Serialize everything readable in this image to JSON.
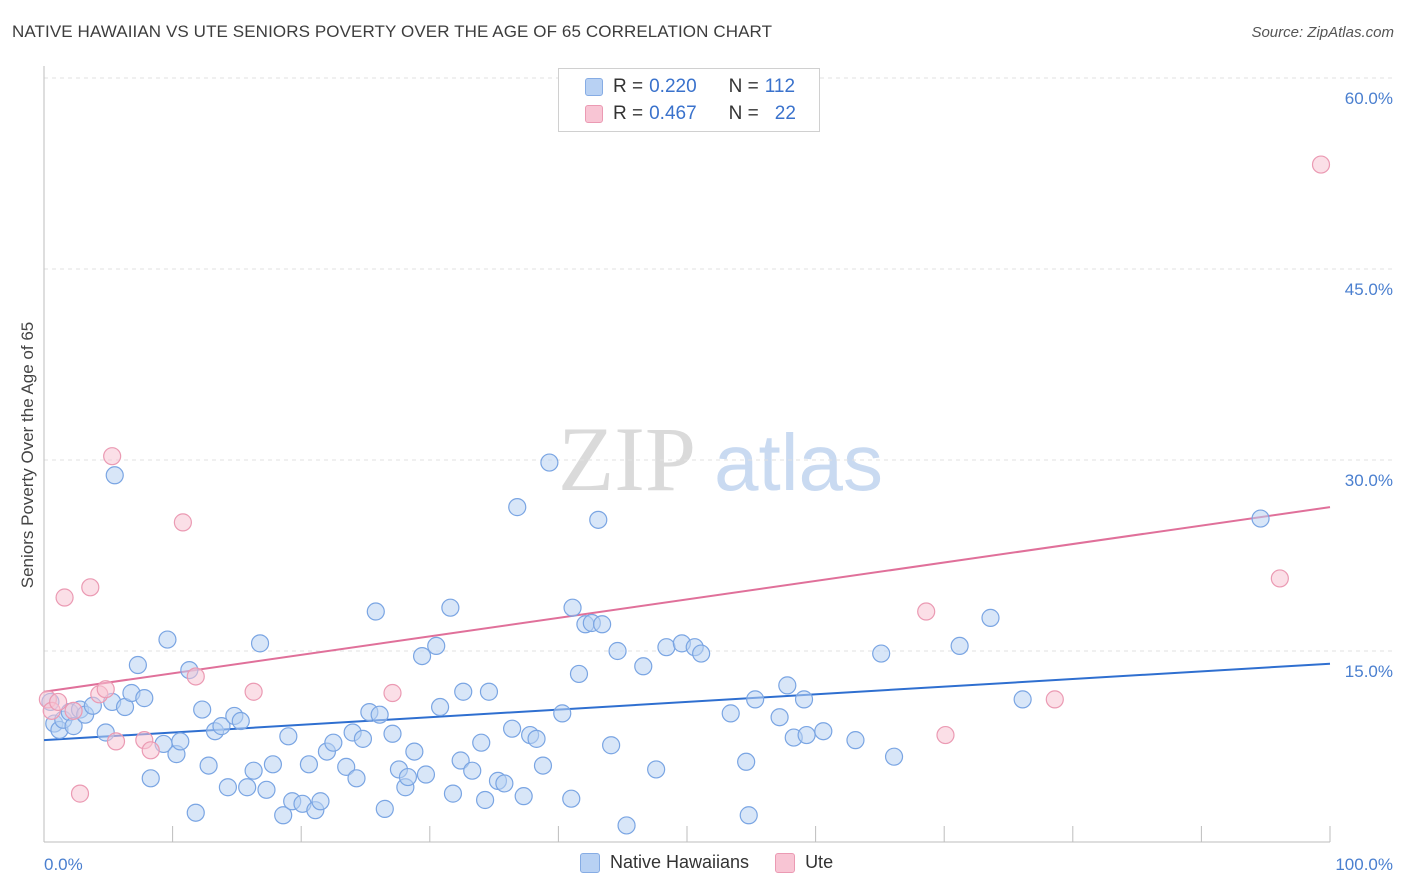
{
  "header": {
    "title": "NATIVE HAWAIIAN VS UTE SENIORS POVERTY OVER THE AGE OF 65 CORRELATION CHART",
    "source": "Source: ZipAtlas.com"
  },
  "legend": {
    "rows": [
      {
        "r_label": "R = ",
        "r_value": "0.220",
        "n_label": "N = ",
        "n_value": "112"
      },
      {
        "r_label": "R = ",
        "r_value": "0.467",
        "n_label": "N = ",
        "n_value": "22"
      }
    ]
  },
  "bottom_legend": [
    "Native Hawaiians",
    "Ute"
  ],
  "watermark": {
    "zip": "ZIP",
    "atlas": "atlas"
  },
  "colors": {
    "blue_fill": "#b8d1f3",
    "blue_stroke": "#7aa5e3",
    "blue_line": "#2f6fd0",
    "pink_fill": "#f8c5d4",
    "pink_stroke": "#eb9ab3",
    "pink_line": "#e0709a",
    "tick_color": "#4a7fcf",
    "grid": "#e2e2e2"
  },
  "chart_data": {
    "type": "scatter",
    "title": "NATIVE HAWAIIAN VS UTE SENIORS POVERTY OVER THE AGE OF 65 CORRELATION CHART",
    "xlabel": "",
    "ylabel": "Seniors Poverty Over the Age of 65",
    "xlim": [
      0,
      100
    ],
    "ylim": [
      0,
      60
    ],
    "x_tick_labels": [
      {
        "value": 0,
        "label": "0.0%"
      },
      {
        "value": 100,
        "label": "100.0%"
      }
    ],
    "y_tick_labels": [
      {
        "value": 15,
        "label": "15.0%"
      },
      {
        "value": 30,
        "label": "30.0%"
      },
      {
        "value": 45,
        "label": "45.0%"
      },
      {
        "value": 60,
        "label": "60.0%"
      }
    ],
    "series": [
      {
        "name": "Native Hawaiians",
        "r": 0.22,
        "n": 112,
        "trend": {
          "x": [
            0,
            100
          ],
          "y": [
            8.0,
            14.0
          ]
        },
        "points": [
          [
            0.5,
            11.0
          ],
          [
            0.8,
            9.3
          ],
          [
            1.2,
            8.8
          ],
          [
            1.5,
            9.6
          ],
          [
            2.0,
            10.2
          ],
          [
            2.3,
            9.1
          ],
          [
            2.8,
            10.4
          ],
          [
            3.2,
            10.0
          ],
          [
            3.8,
            10.7
          ],
          [
            4.8,
            8.6
          ],
          [
            5.3,
            11.0
          ],
          [
            5.5,
            28.8
          ],
          [
            6.3,
            10.6
          ],
          [
            6.8,
            11.7
          ],
          [
            7.3,
            13.9
          ],
          [
            7.8,
            11.3
          ],
          [
            8.3,
            5.0
          ],
          [
            9.3,
            7.7
          ],
          [
            9.6,
            15.9
          ],
          [
            10.3,
            6.9
          ],
          [
            10.6,
            7.9
          ],
          [
            11.3,
            13.5
          ],
          [
            11.8,
            2.3
          ],
          [
            12.3,
            10.4
          ],
          [
            12.8,
            6.0
          ],
          [
            13.3,
            8.7
          ],
          [
            13.8,
            9.1
          ],
          [
            14.3,
            4.3
          ],
          [
            14.8,
            9.9
          ],
          [
            15.3,
            9.5
          ],
          [
            15.8,
            4.3
          ],
          [
            16.3,
            5.6
          ],
          [
            16.8,
            15.6
          ],
          [
            17.3,
            4.1
          ],
          [
            17.8,
            6.1
          ],
          [
            18.6,
            2.1
          ],
          [
            19.0,
            8.3
          ],
          [
            19.3,
            3.2
          ],
          [
            20.1,
            3.0
          ],
          [
            20.6,
            6.1
          ],
          [
            21.1,
            2.5
          ],
          [
            21.5,
            3.2
          ],
          [
            22.0,
            7.1
          ],
          [
            22.5,
            7.8
          ],
          [
            23.5,
            5.9
          ],
          [
            24.0,
            8.6
          ],
          [
            24.3,
            5.0
          ],
          [
            24.8,
            8.1
          ],
          [
            25.3,
            10.2
          ],
          [
            25.8,
            18.1
          ],
          [
            26.1,
            10.0
          ],
          [
            26.5,
            2.6
          ],
          [
            27.1,
            8.5
          ],
          [
            27.6,
            5.7
          ],
          [
            28.1,
            4.3
          ],
          [
            28.3,
            5.1
          ],
          [
            28.8,
            7.1
          ],
          [
            29.4,
            14.6
          ],
          [
            29.7,
            5.3
          ],
          [
            30.5,
            15.4
          ],
          [
            30.8,
            10.6
          ],
          [
            31.6,
            18.4
          ],
          [
            31.8,
            3.8
          ],
          [
            32.4,
            6.4
          ],
          [
            32.6,
            11.8
          ],
          [
            33.3,
            5.6
          ],
          [
            34.0,
            7.8
          ],
          [
            34.3,
            3.3
          ],
          [
            34.6,
            11.8
          ],
          [
            35.3,
            4.8
          ],
          [
            35.8,
            4.6
          ],
          [
            36.4,
            8.9
          ],
          [
            36.8,
            26.3
          ],
          [
            37.3,
            3.6
          ],
          [
            37.8,
            8.4
          ],
          [
            38.3,
            8.1
          ],
          [
            38.8,
            6.0
          ],
          [
            39.3,
            29.8
          ],
          [
            40.3,
            10.1
          ],
          [
            41.0,
            3.4
          ],
          [
            41.1,
            18.4
          ],
          [
            41.6,
            13.2
          ],
          [
            42.1,
            17.1
          ],
          [
            42.6,
            17.2
          ],
          [
            43.1,
            25.3
          ],
          [
            43.4,
            17.1
          ],
          [
            44.1,
            7.6
          ],
          [
            44.6,
            15.0
          ],
          [
            45.3,
            1.3
          ],
          [
            46.6,
            13.8
          ],
          [
            47.6,
            5.7
          ],
          [
            48.4,
            15.3
          ],
          [
            49.6,
            15.6
          ],
          [
            50.6,
            15.3
          ],
          [
            51.1,
            14.8
          ],
          [
            53.4,
            10.1
          ],
          [
            54.6,
            6.3
          ],
          [
            54.8,
            2.1
          ],
          [
            55.3,
            11.2
          ],
          [
            57.2,
            9.8
          ],
          [
            57.8,
            12.3
          ],
          [
            58.3,
            8.2
          ],
          [
            59.1,
            11.2
          ],
          [
            59.3,
            8.4
          ],
          [
            60.6,
            8.7
          ],
          [
            63.1,
            8.0
          ],
          [
            65.1,
            14.8
          ],
          [
            66.1,
            6.7
          ],
          [
            71.2,
            15.4
          ],
          [
            73.6,
            17.6
          ],
          [
            76.1,
            11.2
          ],
          [
            94.6,
            25.4
          ]
        ]
      },
      {
        "name": "Ute",
        "r": 0.467,
        "n": 22,
        "trend": {
          "x": [
            0,
            100
          ],
          "y": [
            11.8,
            26.3
          ]
        },
        "points": [
          [
            0.3,
            11.2
          ],
          [
            0.6,
            10.3
          ],
          [
            1.1,
            11.0
          ],
          [
            1.6,
            19.2
          ],
          [
            2.3,
            10.3
          ],
          [
            2.8,
            3.8
          ],
          [
            3.6,
            20.0
          ],
          [
            4.3,
            11.6
          ],
          [
            4.8,
            12.0
          ],
          [
            5.3,
            30.3
          ],
          [
            5.6,
            7.9
          ],
          [
            7.8,
            8.0
          ],
          [
            8.3,
            7.2
          ],
          [
            10.8,
            25.1
          ],
          [
            11.8,
            13.0
          ],
          [
            16.3,
            11.8
          ],
          [
            27.1,
            11.7
          ],
          [
            68.6,
            18.1
          ],
          [
            70.1,
            8.4
          ],
          [
            78.6,
            11.2
          ],
          [
            96.1,
            20.7
          ],
          [
            99.3,
            53.2
          ]
        ]
      }
    ]
  }
}
